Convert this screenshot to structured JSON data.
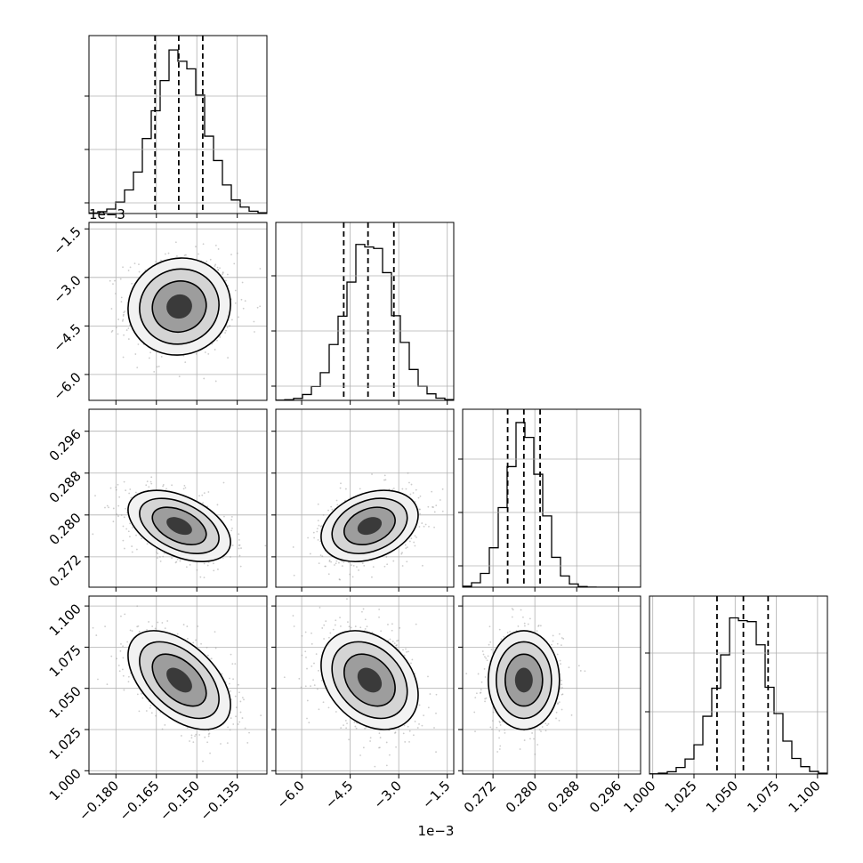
{
  "chart_data": {
    "type": "corner",
    "parameters": [
      {
        "range": [
          -0.19,
          -0.124
        ],
        "ticks": [
          -0.18,
          -0.165,
          -0.15,
          -0.135
        ],
        "tick_labels": [
          "−0.180",
          "−0.165",
          "−0.150",
          "−0.135"
        ],
        "offset": "",
        "center": -0.1565,
        "sigma": 0.0095,
        "quantiles": [
          -0.1655,
          -0.1567,
          -0.1478
        ]
      },
      {
        "range": [
          -6.8,
          -1.3
        ],
        "ticks": [
          -6.0,
          -4.5,
          -3.0,
          -1.5
        ],
        "tick_labels": [
          "−6.0",
          "−4.5",
          "−3.0",
          "−1.5"
        ],
        "offset": "1e−3",
        "center": -3.9,
        "sigma": 0.75,
        "quantiles": [
          -4.7,
          -3.95,
          -3.15
        ]
      },
      {
        "range": [
          0.2662,
          0.3002
        ],
        "ticks": [
          0.272,
          0.28,
          0.288,
          0.296
        ],
        "tick_labels": [
          "0.272",
          "0.280",
          "0.288",
          "0.296"
        ],
        "offset": "",
        "center": 0.2779,
        "sigma": 0.0034,
        "quantiles": [
          0.2748,
          0.2779,
          0.281
        ]
      },
      {
        "range": [
          0.998,
          1.106
        ],
        "ticks": [
          1.0,
          1.025,
          1.05,
          1.075,
          1.1
        ],
        "tick_labels": [
          "1.000",
          "1.025",
          "1.050",
          "1.075",
          "1.100"
        ],
        "offset": "",
        "center": 1.055,
        "sigma": 0.015,
        "quantiles": [
          1.039,
          1.055,
          1.07
        ]
      }
    ],
    "correlations": [
      [
        0,
        0,
        0,
        0
      ],
      [
        0.05,
        0,
        0,
        0
      ],
      [
        -0.45,
        0.3,
        0,
        0
      ],
      [
        -0.5,
        -0.3,
        0,
        0
      ]
    ],
    "diag_hist_ticks": [
      [
        0.06,
        0.36,
        0.66
      ],
      [
        0.08,
        0.39,
        0.7
      ],
      [
        0.12,
        0.42,
        0.72
      ],
      [
        0.35,
        0.68
      ]
    ],
    "grid": true
  }
}
